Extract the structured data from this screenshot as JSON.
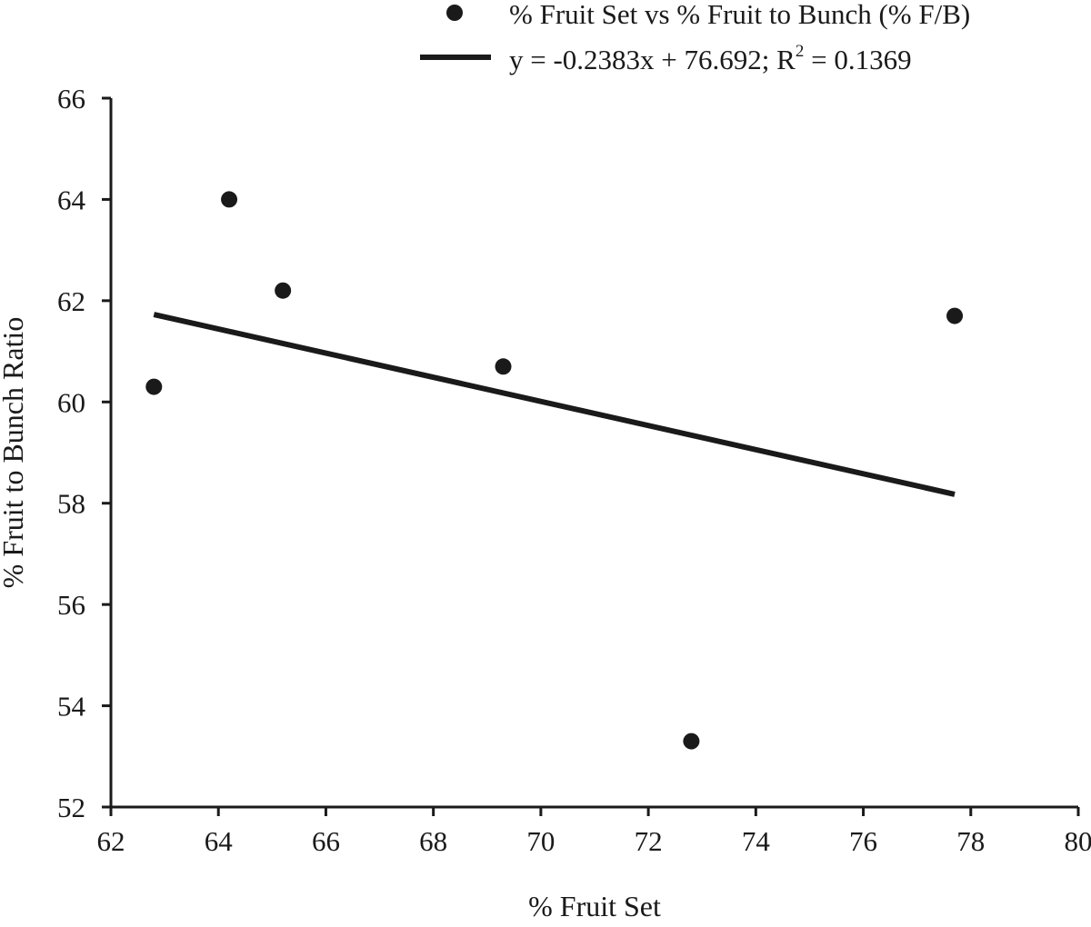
{
  "chart_data": {
    "type": "scatter",
    "xlabel": "% Fruit Set",
    "ylabel": "% Fruit to Bunch Ratio",
    "xlim": [
      62,
      80
    ],
    "ylim": [
      52,
      66
    ],
    "x_ticks": [
      62,
      64,
      66,
      68,
      70,
      72,
      74,
      76,
      78,
      80
    ],
    "y_ticks": [
      52,
      54,
      56,
      58,
      60,
      62,
      64,
      66
    ],
    "grid": false,
    "legend_position": "top-right",
    "series": [
      {
        "name": "% Fruit Set vs % Fruit to Bunch (% F/B)",
        "x": [
          62.8,
          64.2,
          65.2,
          69.3,
          72.8,
          77.7
        ],
        "y": [
          60.3,
          64.0,
          62.2,
          60.7,
          53.3,
          61.7
        ]
      }
    ],
    "trendline": {
      "legend_text_main": "y = -0.2383x + 76.692; R",
      "legend_text_sup": "2",
      "legend_text_tail": " = 0.1369",
      "slope": -0.2383,
      "intercept": 76.692,
      "x_range": [
        62.8,
        77.7
      ]
    }
  }
}
